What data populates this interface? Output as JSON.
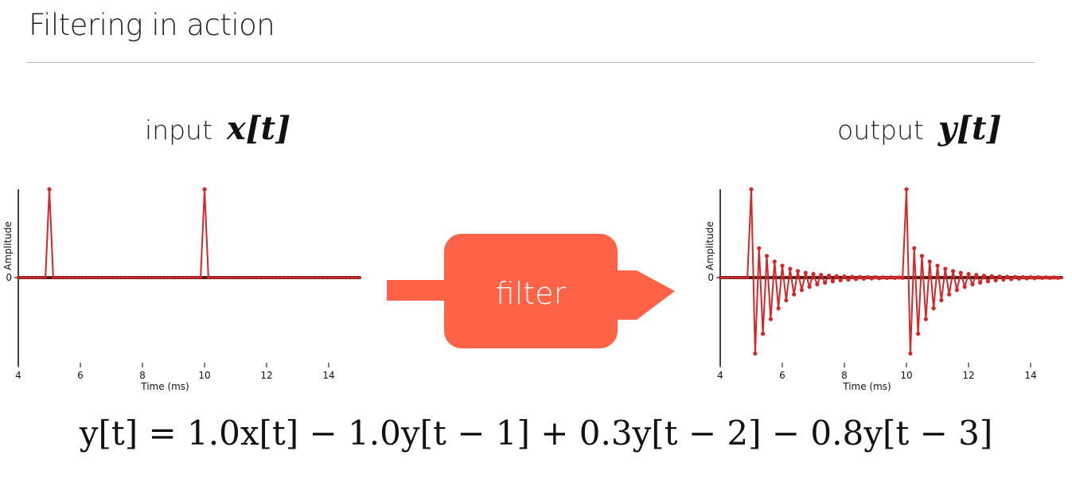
{
  "slide": {
    "title": "Filtering in action"
  },
  "input_caption": {
    "word": "input",
    "math": "x[t]"
  },
  "output_caption": {
    "word": "output",
    "math": "y[t]"
  },
  "filter_block": {
    "label": "filter",
    "color": "#ff6347"
  },
  "equation": "y[t] = 1.0x[t] − 1.0y[t − 1] + 0.3y[t − 2] − 0.8y[t − 3]",
  "colors": {
    "signal": "#d62728",
    "axis": "#000000"
  },
  "chart_data": [
    {
      "type": "line",
      "name": "input",
      "xlabel": "Time (ms)",
      "ylabel": "Amplitude",
      "xlim": [
        4,
        15
      ],
      "ylim": [
        -1,
        1
      ],
      "xticks": [
        4,
        6,
        8,
        10,
        12,
        14
      ],
      "yticks": [
        0
      ],
      "x_start": 4.0,
      "x_step": 0.125,
      "impulses": [
        {
          "x": 5.0,
          "value": 1.0
        },
        {
          "x": 10.0,
          "value": 1.0
        }
      ]
    },
    {
      "type": "line",
      "name": "output",
      "xlabel": "Time (ms)",
      "ylabel": "Amplitude",
      "xlim": [
        4,
        15
      ],
      "ylim": [
        -1,
        1
      ],
      "xticks": [
        4,
        6,
        8,
        10,
        12,
        14
      ],
      "yticks": [
        0
      ],
      "x_start": 4.0,
      "x_step": 0.125,
      "filter_coefficients": {
        "b0": 1.0,
        "a1": -1.0,
        "a2": 0.3,
        "a3": -0.8
      },
      "impulse_starts": [
        5.0,
        10.0
      ]
    }
  ]
}
